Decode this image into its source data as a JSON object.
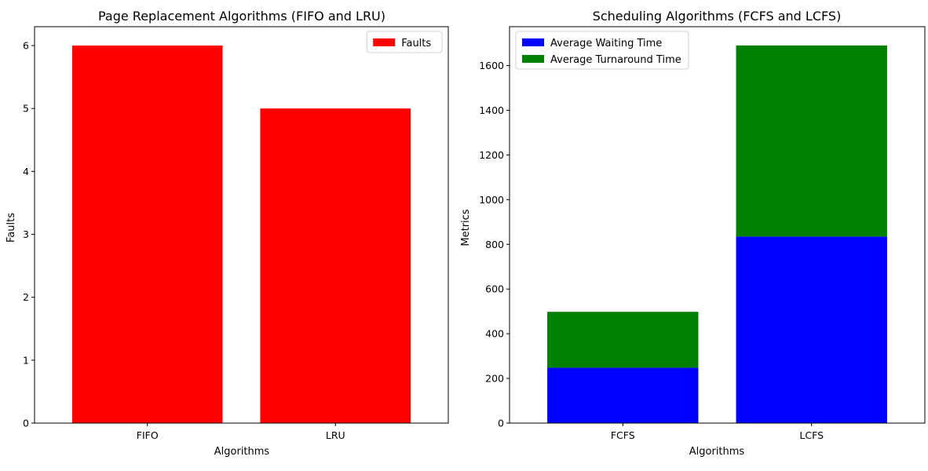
{
  "chart_data": [
    {
      "type": "bar",
      "title": "Page Replacement Algorithms (FIFO and LRU)",
      "xlabel": "Algorithms",
      "ylabel": "Faults",
      "categories": [
        "FIFO",
        "LRU"
      ],
      "series": [
        {
          "name": "Faults",
          "values": [
            6,
            5
          ],
          "color": "#ff0000"
        }
      ],
      "ylim": [
        0,
        6.3
      ],
      "yticks": [
        0,
        1,
        2,
        3,
        4,
        5,
        6
      ],
      "grid": false,
      "legend": "top-right"
    },
    {
      "type": "bar",
      "stacked": true,
      "title": "Scheduling Algorithms (FCFS and LCFS)",
      "xlabel": "Algorithms",
      "ylabel": "Metrics",
      "categories": [
        "FCFS",
        "LCFS"
      ],
      "series": [
        {
          "name": "Average Waiting Time",
          "values": [
            248,
            835
          ],
          "color": "#0000ff"
        },
        {
          "name": "Average Turnaround Time",
          "values": [
            250,
            855
          ],
          "color": "#008000"
        }
      ],
      "ylim": [
        0,
        1774
      ],
      "yticks": [
        0,
        200,
        400,
        600,
        800,
        1000,
        1200,
        1400,
        1600
      ],
      "grid": false,
      "legend": "top-left"
    }
  ]
}
